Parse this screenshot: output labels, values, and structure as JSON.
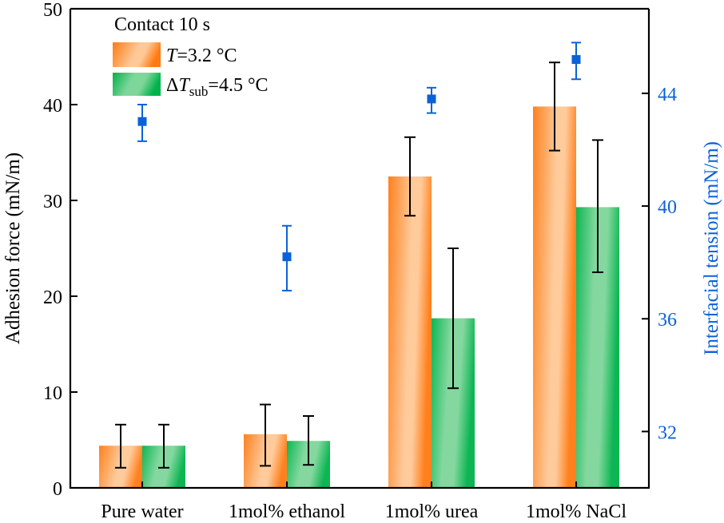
{
  "chart_data": {
    "type": "bar",
    "title": "",
    "categories": [
      "Pure water",
      "1mol% ethanol",
      "1mol% urea",
      "1mol% NaCl"
    ],
    "xlabel": "",
    "ylabel": "Adhesion force (mN/m)",
    "ylim": [
      0,
      50
    ],
    "yticks": [
      0,
      10,
      20,
      30,
      40,
      50
    ],
    "y2label": "Interfacial tension (mN/m)",
    "y2lim": [
      30,
      47
    ],
    "y2ticks": [
      32,
      36,
      40,
      44
    ],
    "grid": false,
    "legend": {
      "placement": "top-left",
      "title": "Contact 10 s",
      "entries": [
        {
          "series": "T",
          "label_main": "T",
          "label_rest": "=3.2 °C",
          "prefix": ""
        },
        {
          "series": "dTsub",
          "label_prefix": "Δ",
          "label_main": "T",
          "label_sub": "sub",
          "label_rest": "=4.5 °C"
        }
      ]
    },
    "series": [
      {
        "name": "T=3.2 °C",
        "axis": "left",
        "kind": "bar",
        "values": [
          4.4,
          5.6,
          32.5,
          39.8
        ],
        "err_low": [
          2.1,
          2.3,
          28.4,
          35.2
        ],
        "err_high": [
          6.6,
          8.7,
          36.6,
          44.4
        ]
      },
      {
        "name": "ΔTsub=4.5 °C",
        "axis": "left",
        "kind": "bar",
        "values": [
          4.4,
          4.9,
          17.7,
          29.3
        ],
        "err_low": [
          2.1,
          2.4,
          10.4,
          22.5
        ],
        "err_high": [
          6.6,
          7.5,
          25.0,
          36.3
        ]
      },
      {
        "name": "Interfacial tension",
        "axis": "right",
        "kind": "scatter",
        "values": [
          43.0,
          38.2,
          43.8,
          45.2
        ],
        "err_low": [
          42.3,
          37.0,
          43.3,
          44.5
        ],
        "err_high": [
          43.6,
          39.3,
          44.2,
          45.8
        ]
      }
    ],
    "colors": {
      "orange_dark": "#FF7A12",
      "orange_light": "#FFC896",
      "green_dark": "#00B24A",
      "green_light": "#7ED69A",
      "blue": "#0A62D8",
      "axis": "#000000"
    }
  }
}
